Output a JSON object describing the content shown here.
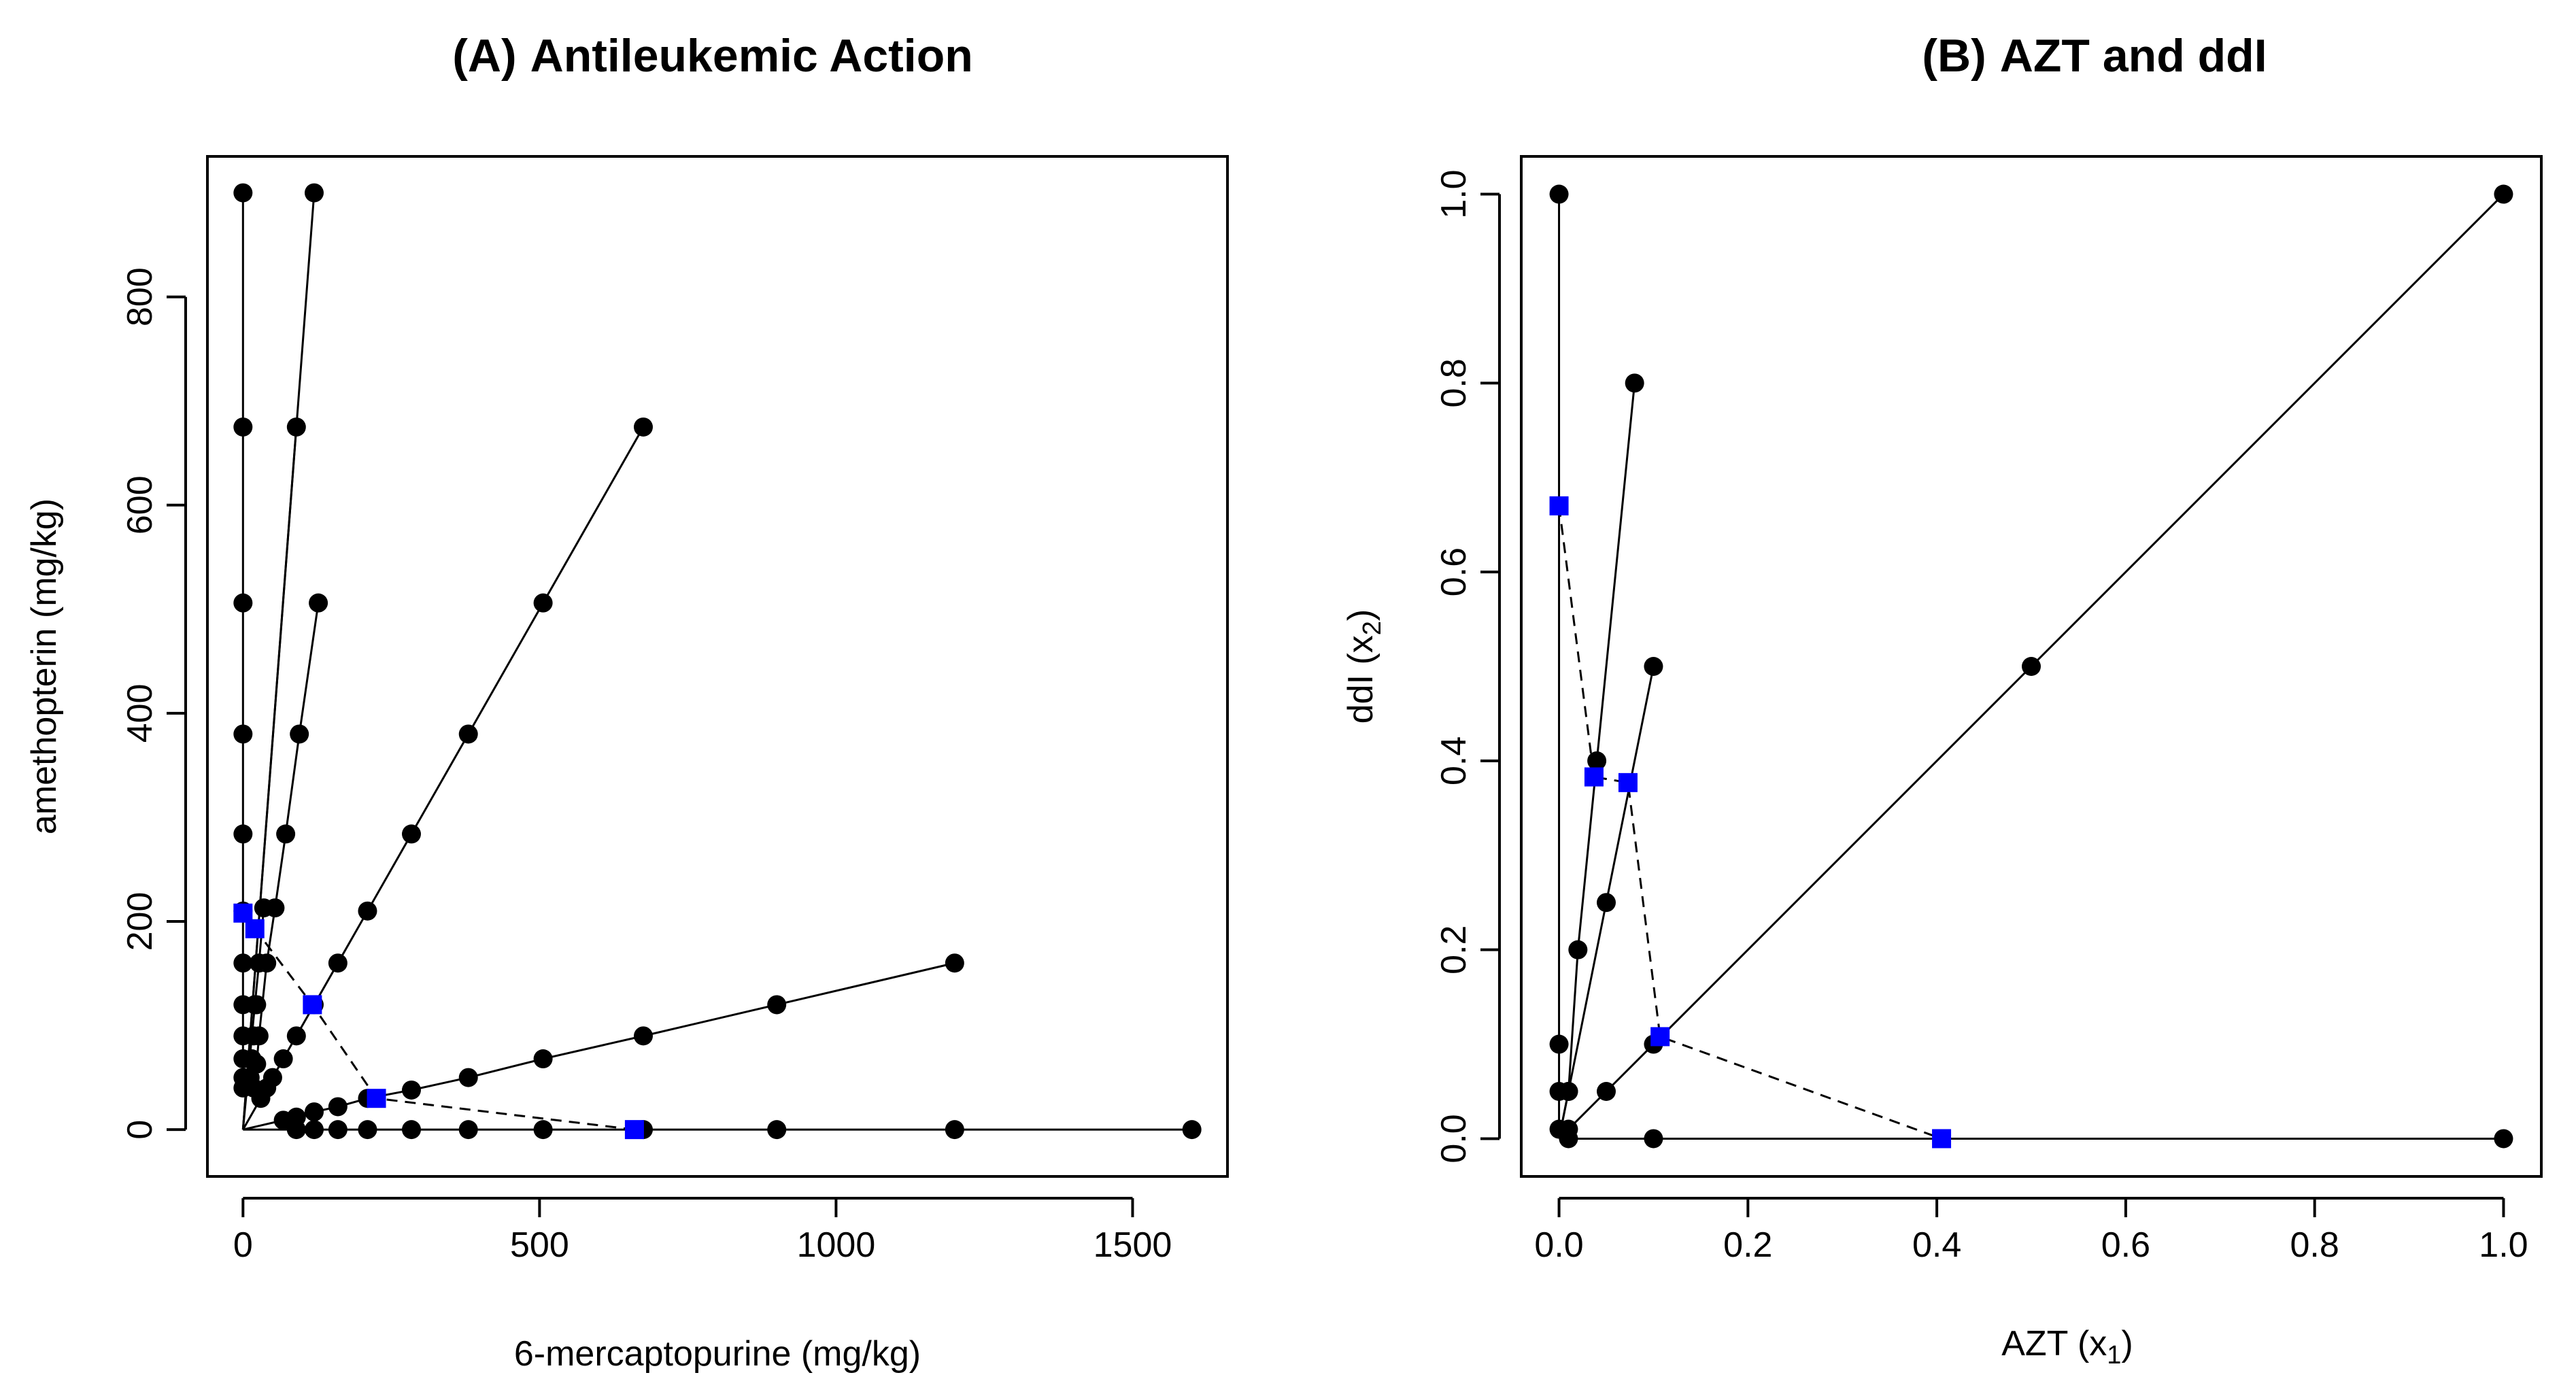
{
  "chart_data": [
    {
      "type": "line",
      "panel": "(A)",
      "title": "Antileukemic Action",
      "xlabel": "6-mercaptopurine (mg/kg)",
      "ylabel": "amethopterin (mg/kg)",
      "xlim": [
        -60,
        1660
      ],
      "ylim": [
        -45,
        935
      ],
      "x_ticks": [
        "0",
        "500",
        "1000",
        "1500"
      ],
      "x_tick_values": [
        0,
        500,
        1000,
        1500
      ],
      "y_ticks": [
        "0",
        "200",
        "400",
        "600",
        "800"
      ],
      "y_tick_values": [
        0,
        200,
        400,
        600,
        800
      ],
      "grid": false,
      "rays": [
        {
          "x": [
            0,
            0,
            0,
            0,
            0,
            0,
            0,
            0,
            0,
            0,
            0,
            0
          ],
          "y": [
            40,
            50,
            68,
            90,
            120,
            160,
            210,
            284,
            380,
            506,
            675,
            900
          ]
        },
        {
          "x": [
            18,
            23,
            27,
            40,
            54,
            72,
            95,
            127
          ],
          "y": [
            40,
            63,
            90,
            160,
            213,
            284,
            380,
            506
          ]
        },
        {
          "x": [
            0,
            30,
            40,
            50,
            68,
            90,
            120,
            160,
            210,
            284,
            380,
            506,
            675
          ],
          "y": [
            0,
            30,
            40,
            50,
            68,
            90,
            120,
            160,
            210,
            284,
            380,
            506,
            675
          ]
        },
        {
          "x": [
            0,
            68,
            90,
            120,
            160,
            210,
            284,
            380,
            506,
            675,
            900,
            1200
          ],
          "y": [
            0,
            9,
            12,
            17,
            22,
            30,
            38,
            50,
            68,
            90,
            120,
            160
          ]
        },
        {
          "x": [
            0,
            90,
            120,
            160,
            210,
            284,
            380,
            506,
            675,
            900,
            1200,
            1600
          ],
          "y": [
            0,
            0,
            0,
            0,
            0,
            0,
            0,
            0,
            0,
            0,
            0,
            0
          ]
        },
        {
          "x": [
            0,
            20,
            27,
            35
          ],
          "y": [
            0,
            120,
            160,
            213
          ]
        },
        {
          "x": [
            0,
            90
          ],
          "y": [
            0,
            675
          ]
        },
        {
          "x": [
            0,
            120
          ],
          "y": [
            0,
            900
          ]
        }
      ],
      "extra_points": [
        {
          "x": 18,
          "y": 90
        },
        {
          "x": 23,
          "y": 120
        },
        {
          "x": 15,
          "y": 68
        },
        {
          "x": 12,
          "y": 50
        }
      ],
      "isobole": {
        "x": [
          0,
          20,
          117,
          225,
          660
        ],
        "y": [
          208,
          193,
          120,
          30,
          0
        ]
      }
    },
    {
      "type": "line",
      "panel": "(B)",
      "title": "AZT and ddI",
      "xlabel": "AZT (x",
      "xlabel_sub": "1",
      "xlabel_tail": ")",
      "ylabel": "ddI (x",
      "ylabel_sub": "2",
      "ylabel_tail": ")",
      "xlim": [
        -0.04,
        1.04
      ],
      "ylim": [
        -0.04,
        1.04
      ],
      "x_ticks": [
        "0.0",
        "0.2",
        "0.4",
        "0.6",
        "0.8",
        "1.0"
      ],
      "x_tick_values": [
        0.0,
        0.2,
        0.4,
        0.6,
        0.8,
        1.0
      ],
      "y_ticks": [
        "0.0",
        "0.2",
        "0.4",
        "0.6",
        "0.8",
        "1.0"
      ],
      "y_tick_values": [
        0.0,
        0.2,
        0.4,
        0.6,
        0.8,
        1.0
      ],
      "grid": false,
      "rays": [
        {
          "x": [
            0,
            0,
            0,
            0,
            0
          ],
          "y": [
            0,
            0.01,
            0.05,
            0.1,
            1.0
          ]
        },
        {
          "x": [
            0,
            0.01,
            0.02,
            0.04,
            0.08
          ],
          "y": [
            0,
            0.05,
            0.2,
            0.4,
            0.8
          ]
        },
        {
          "x": [
            0,
            0.01,
            0.05,
            0.1
          ],
          "y": [
            0,
            0.05,
            0.25,
            0.5
          ]
        },
        {
          "x": [
            0,
            0.01,
            0.05,
            0.1,
            0.5,
            1.0
          ],
          "y": [
            0,
            0.01,
            0.05,
            0.1,
            0.5,
            1.0
          ]
        },
        {
          "x": [
            0,
            0.01,
            0.1,
            1.0
          ],
          "y": [
            0,
            0,
            0,
            0
          ]
        }
      ],
      "extra_points": [],
      "isobole": {
        "x": [
          0,
          0.037,
          0.073,
          0.107,
          0.405
        ],
        "y": [
          0.67,
          0.383,
          0.377,
          0.108,
          0
        ]
      }
    }
  ]
}
